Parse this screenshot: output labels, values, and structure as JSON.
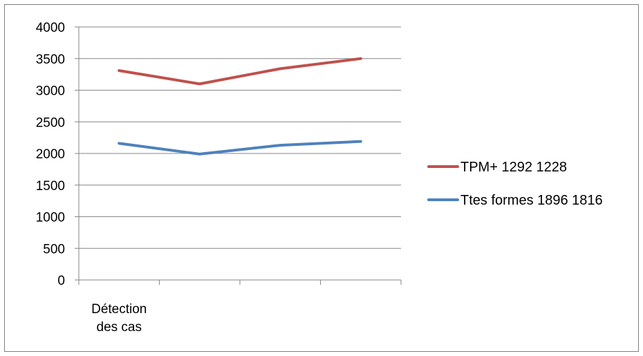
{
  "chart_data": {
    "type": "line",
    "categories": [
      "Détection des cas",
      "",
      "",
      ""
    ],
    "category_label_lines": [
      [
        "Détection",
        "des cas"
      ],
      [],
      [],
      []
    ],
    "series": [
      {
        "name": "TPM+ 1292 1228",
        "color": "#c0504d",
        "values": [
          3310,
          3100,
          3340,
          3500
        ]
      },
      {
        "name": "Ttes formes 1896 1816",
        "color": "#4f81bd",
        "values": [
          2160,
          1990,
          2130,
          2190
        ]
      }
    ],
    "ylim": [
      0,
      4000
    ],
    "yticks": [
      0,
      500,
      1000,
      1500,
      2000,
      2500,
      3000,
      3500,
      4000
    ],
    "grid": true,
    "legend_position": "right"
  }
}
